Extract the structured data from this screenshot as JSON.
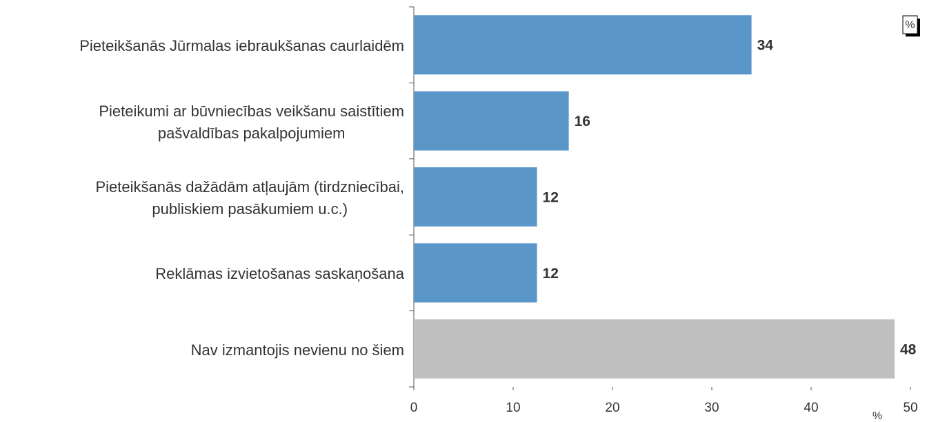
{
  "chart_data": {
    "type": "bar",
    "orientation": "horizontal",
    "categories": [
      "Pieteikšanās Jūrmalas iebraukšanas caurlaidēm",
      "Pieteikumi ar būvniecības veikšanu saistītiem\npašvaldības pakalpojumiem",
      "Pieteikšanās dažādām atļaujām (tirdzniecībai,\npubliskiem pasākumiem u.c.)",
      "Reklāmas izvietošanas saskaņošana",
      "Nav izmantojis nevienu no šiem"
    ],
    "values": [
      34,
      15.6,
      12.4,
      12.4,
      48.4
    ],
    "value_labels": [
      "34",
      "16",
      "12",
      "12",
      "48"
    ],
    "colors": [
      "#5b96c8",
      "#5b96c8",
      "#5b96c8",
      "#5b96c8",
      "#c0c0c0"
    ],
    "xlim": [
      0,
      50
    ],
    "xticks": [
      0,
      10,
      20,
      30,
      40,
      50
    ],
    "xlabel": "%",
    "unit_box": "%"
  }
}
